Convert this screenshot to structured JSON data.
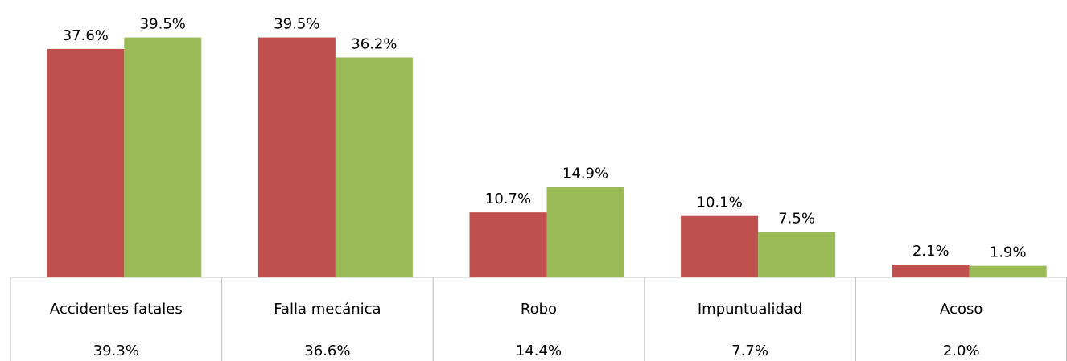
{
  "chart_data": {
    "type": "bar",
    "categories": [
      "Accidentes fatales",
      "Falla mecánica",
      "Robo",
      "Impuntualidad",
      "Acoso"
    ],
    "series": [
      {
        "color": "#c0504d",
        "values": [
          37.6,
          39.5,
          10.7,
          10.1,
          2.1
        ],
        "value_labels": [
          "37.6%",
          "39.5%",
          "10.7%",
          "10.1%",
          "2.1%"
        ]
      },
      {
        "color": "#9bbb59",
        "values": [
          39.5,
          36.2,
          14.9,
          7.5,
          1.9
        ],
        "value_labels": [
          "39.5%",
          "36.2%",
          "14.9%",
          "7.5%",
          "1.9%"
        ]
      }
    ],
    "table_values": [
      39.3,
      36.6,
      14.4,
      7.7,
      2.0
    ],
    "table_value_labels": [
      "39.3%",
      "36.6%",
      "14.4%",
      "7.7%",
      "2.0%"
    ],
    "ylim": [
      0,
      45
    ]
  }
}
